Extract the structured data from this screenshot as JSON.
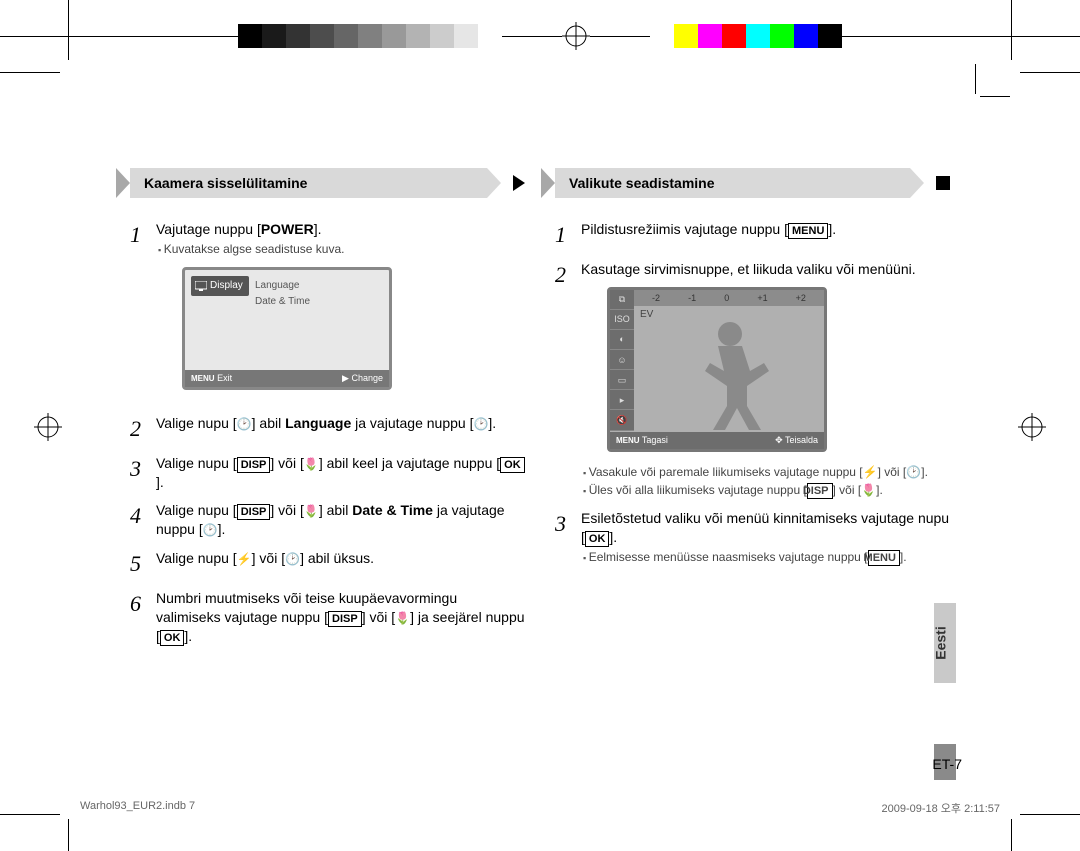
{
  "calibration_colors_left": [
    "#000000",
    "#1a1a1a",
    "#333333",
    "#4d4d4d",
    "#666666",
    "#808080",
    "#999999",
    "#b3b3b3",
    "#cccccc",
    "#e6e6e6",
    "#ffffff"
  ],
  "calibration_colors_right": [
    "#ffffff",
    "#ffff00",
    "#ff00ff",
    "#ff0000",
    "#00ffff",
    "#00ff00",
    "#0000ff",
    "#000000"
  ],
  "left": {
    "title": "Kaamera sisselülitamine",
    "step1": "Vajutage nuppu ",
    "step1_btn": "POWER",
    "step1_sub": "Kuvatakse algse seadistuse kuva.",
    "lcd_display": "Display",
    "lcd_language": "Language",
    "lcd_datetime": "Date & Time",
    "lcd_exit_label": "Exit",
    "lcd_change_label": "Change",
    "step2a": "Valige nupu [",
    "step2b": "] abil ",
    "step2_lang": "Language",
    "step2c": " ja vajutage nuppu [",
    "step2d": "].",
    "step3a": "Valige nupu [",
    "step3_disp": "DISP",
    "step3b": "] või [",
    "step3c": "] abil keel ja vajutage nuppu [",
    "step3_ok": "OK",
    "step3d": "].",
    "step4a": "Valige nupu [",
    "step4_disp": "DISP",
    "step4b": "] või [",
    "step4c": "] abil ",
    "step4_dt": "Date & Time",
    "step4d": " ja vajutage nuppu [",
    "step4e": "].",
    "step5a": "Valige nupu [",
    "step5b": "] või [",
    "step5c": "] abil üksus.",
    "step6a": "Numbri muutmiseks või teise kuupäevavormingu valimiseks vajutage nuppu [",
    "step6_disp": "DISP",
    "step6b": "] või [",
    "step6c": "] ja seejärel nuppu [",
    "step6_ok": "OK",
    "step6d": "]."
  },
  "right": {
    "title": "Valikute seadistamine",
    "step1a": "Pildistusrežiimis vajutage nuppu [",
    "step1_menu": "MENU",
    "step1b": "].",
    "step2": "Kasutage sirvimisnuppe, et liikuda valiku või menüüni.",
    "ev_values": [
      "-2",
      "-1",
      "0",
      "+1",
      "+2"
    ],
    "ev_label": "EV",
    "lcd_tagasi": "Tagasi",
    "lcd_teisalda": "Teisalda",
    "sub2a": "Vasakule või paremale liikumiseks vajutage nuppu [",
    "sub2b": "] või [",
    "sub2c": "].",
    "sub2d": "Üles või alla liikumiseks vajutage nuppu [",
    "sub2_disp": "DISP",
    "sub2e": "] või [",
    "sub2f": "].",
    "step3a": "Esiletõstetud valiku või menüü kinnitamiseks vajutage nupu [",
    "step3_ok": "OK",
    "step3b": "].",
    "sub3a": "Eelmisesse menüüsse naasmiseks vajutage nuppu [",
    "sub3_menu": "MENU",
    "sub3b": "]."
  },
  "side_tab": "Eesti",
  "page_number": "ET-7",
  "footer_file": "Warhol93_EUR2.indb   7",
  "footer_time": "2009-09-18   오후 2:11:57"
}
